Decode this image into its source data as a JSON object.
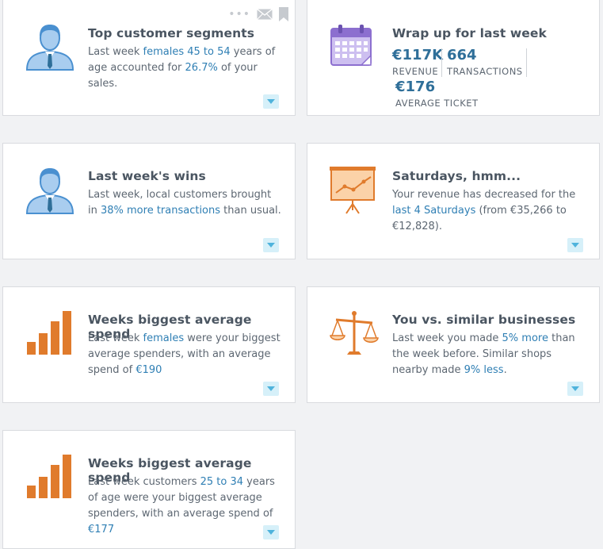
{
  "colors": {
    "accent_text": "#2f7fb4",
    "icon_blue": "#4a90d0",
    "icon_orange": "#e07b2c",
    "icon_purple": "#8c6fcf",
    "expander_bg": "#d6f0f9"
  },
  "cards": [
    {
      "icon": "person-icon",
      "title": "Top customer segments",
      "body": [
        {
          "t": "Last week ",
          "hl": false
        },
        {
          "t": "females",
          "hl": true
        },
        {
          "t": " ",
          "hl": false
        },
        {
          "t": "45 to 54",
          "hl": true
        },
        {
          "t": " years of age accounted for ",
          "hl": false
        },
        {
          "t": "26.7%",
          "hl": true
        },
        {
          "t": " of your sales.",
          "hl": false
        }
      ],
      "tools": [
        "more-options-icon",
        "email-icon",
        "bookmark-icon"
      ]
    },
    {
      "icon": "calendar-icon",
      "title": "Wrap up for last week",
      "stats": [
        {
          "value": "€117K",
          "label": "REVENUE"
        },
        {
          "value": "664",
          "label": "TRANSACTIONS"
        },
        {
          "value": "€176",
          "label": "AVERAGE TICKET"
        }
      ]
    },
    {
      "icon": "person-icon",
      "title": "Last week's wins",
      "body": [
        {
          "t": "Last week, local customers brought in ",
          "hl": false
        },
        {
          "t": "38% more transactions",
          "hl": true
        },
        {
          "t": " than usual.",
          "hl": false
        }
      ]
    },
    {
      "icon": "presentation-chart-icon",
      "title": "Saturdays, hmm...",
      "body": [
        {
          "t": "Your revenue has decreased for the ",
          "hl": false
        },
        {
          "t": "last 4 Saturdays",
          "hl": true
        },
        {
          "t": " (from €35,266 to €12,828).",
          "hl": false
        }
      ]
    },
    {
      "icon": "bar-chart-icon",
      "title": "Weeks biggest average spend",
      "body": [
        {
          "t": "Last week ",
          "hl": false
        },
        {
          "t": "females",
          "hl": true
        },
        {
          "t": " were your biggest average spenders, with an average spend of ",
          "hl": false
        },
        {
          "t": "€190",
          "hl": true
        }
      ]
    },
    {
      "icon": "balance-scale-icon",
      "title": "You vs. similar businesses",
      "body": [
        {
          "t": "Last week you made ",
          "hl": false
        },
        {
          "t": "5% more",
          "hl": true
        },
        {
          "t": " than the week before. Similar shops nearby made ",
          "hl": false
        },
        {
          "t": "9% less",
          "hl": true
        },
        {
          "t": ".",
          "hl": false
        }
      ]
    },
    {
      "icon": "bar-chart-icon",
      "title": "Weeks biggest average spend",
      "body": [
        {
          "t": "Last week customers ",
          "hl": false
        },
        {
          "t": "25 to 34",
          "hl": true
        },
        {
          "t": " years of age were your biggest average spenders, with an average spend of ",
          "hl": false
        },
        {
          "t": "€177",
          "hl": true
        }
      ]
    }
  ]
}
